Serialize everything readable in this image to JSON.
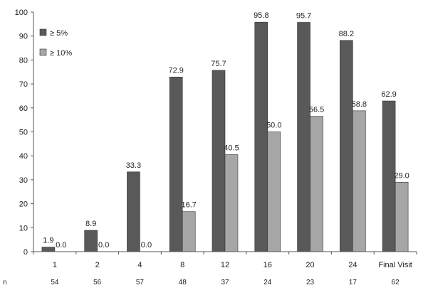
{
  "chart_data": {
    "type": "bar",
    "categories": [
      "1",
      "2",
      "4",
      "8",
      "12",
      "16",
      "20",
      "24",
      "Final Visit"
    ],
    "series": [
      {
        "name": "≥ 5%",
        "values": [
          1.9,
          8.9,
          33.3,
          72.9,
          75.7,
          95.8,
          95.7,
          88.2,
          62.9
        ],
        "color": "#595959"
      },
      {
        "name": "≥ 10%",
        "values": [
          0.0,
          0.0,
          0.0,
          16.7,
          40.5,
          50.0,
          56.5,
          58.8,
          29.0
        ],
        "color": "#a6a6a6"
      }
    ],
    "ylim": [
      0,
      100
    ],
    "yticks": [
      0,
      10,
      20,
      30,
      40,
      50,
      60,
      70,
      80,
      90,
      100
    ],
    "data_label_decimals": 1,
    "n_row": {
      "label": "n",
      "values": [
        "54",
        "56",
        "57",
        "48",
        "37",
        "24",
        "23",
        "17",
        "62"
      ]
    },
    "legend_position": "top-left",
    "grid": false
  }
}
